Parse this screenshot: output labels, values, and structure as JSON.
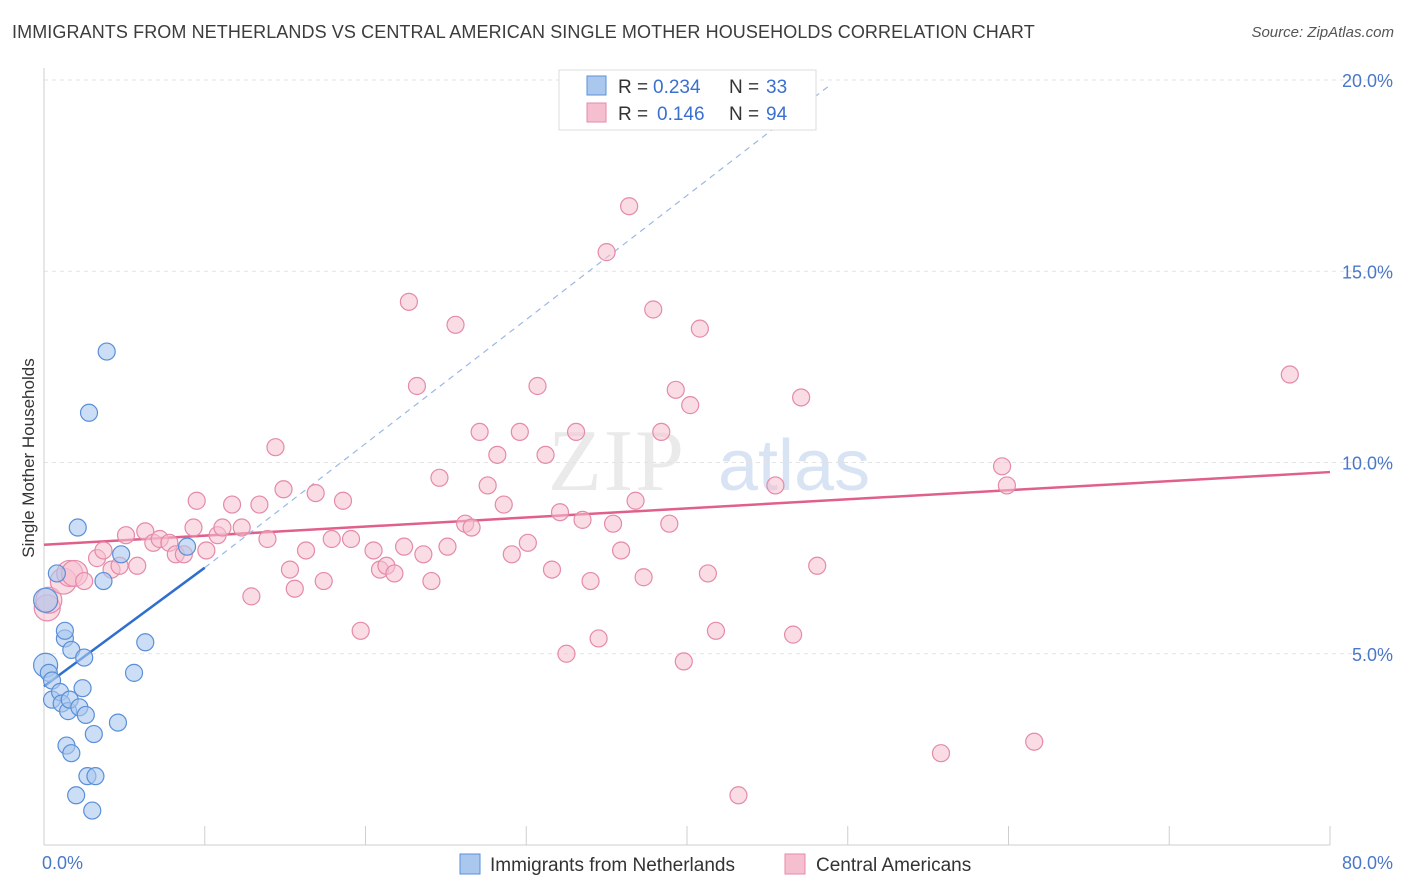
{
  "title": "IMMIGRANTS FROM NETHERLANDS VS CENTRAL AMERICAN SINGLE MOTHER HOUSEHOLDS CORRELATION CHART",
  "source": "Source: ZipAtlas.com",
  "watermark": {
    "zip": "ZIP",
    "atlas": "atlas"
  },
  "colors": {
    "blue_fill": "#aac8ee",
    "blue_stroke": "#5a8fd8",
    "blue_line": "#2f6fd0",
    "pink_fill": "#f6bfd0",
    "pink_stroke": "#e58aa8",
    "pink_line": "#e0608a",
    "axis_text": "#4a78c8",
    "grid": "#e3e3e3"
  },
  "legend": {
    "rows": [
      {
        "r_label": "R =",
        "r_value": "0.234",
        "n_label": "N =",
        "n_value": "33"
      },
      {
        "r_label": "R =",
        "r_value": "0.146",
        "n_label": "N =",
        "n_value": "94"
      }
    ]
  },
  "bottom_legend": [
    "Immigrants from Netherlands",
    "Central Americans"
  ],
  "chart_data": {
    "type": "scatter",
    "title": "IMMIGRANTS FROM NETHERLANDS VS CENTRAL AMERICAN SINGLE MOTHER HOUSEHOLDS CORRELATION CHART",
    "xlabel": "",
    "ylabel": "Single Mother Households",
    "xlim": [
      0,
      80
    ],
    "ylim": [
      0,
      20
    ],
    "x_tick_labels": [
      "0.0%",
      "80.0%"
    ],
    "y_ticks": [
      5,
      10,
      15,
      20
    ],
    "y_tick_labels": [
      "5.0%",
      "10.0%",
      "15.0%",
      "20.0%"
    ],
    "grid": true,
    "legend_position": "top-center",
    "series": [
      {
        "name": "Immigrants from Netherlands",
        "color": "#5a8fd8",
        "points": [
          [
            0.1,
            6.4
          ],
          [
            0.1,
            4.7
          ],
          [
            0.3,
            4.5
          ],
          [
            0.5,
            4.3
          ],
          [
            0.5,
            3.8
          ],
          [
            0.8,
            7.1
          ],
          [
            1.0,
            4.0
          ],
          [
            1.1,
            3.7
          ],
          [
            1.3,
            5.4
          ],
          [
            1.3,
            5.6
          ],
          [
            1.4,
            2.6
          ],
          [
            1.5,
            3.5
          ],
          [
            1.6,
            3.8
          ],
          [
            1.7,
            5.1
          ],
          [
            1.7,
            2.4
          ],
          [
            2.0,
            1.3
          ],
          [
            2.1,
            8.3
          ],
          [
            2.2,
            3.6
          ],
          [
            2.4,
            4.1
          ],
          [
            2.5,
            4.9
          ],
          [
            2.6,
            3.4
          ],
          [
            2.7,
            1.8
          ],
          [
            2.8,
            11.3
          ],
          [
            3.0,
            0.9
          ],
          [
            3.1,
            2.9
          ],
          [
            3.2,
            1.8
          ],
          [
            3.7,
            6.9
          ],
          [
            3.9,
            12.9
          ],
          [
            4.6,
            3.2
          ],
          [
            4.8,
            7.6
          ],
          [
            5.6,
            4.5
          ],
          [
            6.3,
            5.3
          ],
          [
            8.9,
            7.8
          ]
        ],
        "trend": {
          "x": [
            0,
            10
          ],
          "y": [
            4.15,
            7.25
          ],
          "dashed_extension": {
            "x": [
              10,
              49
            ],
            "y": [
              7.25,
              19.9
            ]
          }
        }
      },
      {
        "name": "Central Americans",
        "color": "#e58aa8",
        "points": [
          [
            0.2,
            6.2
          ],
          [
            0.3,
            6.4
          ],
          [
            1.2,
            6.9
          ],
          [
            1.6,
            7.1
          ],
          [
            1.9,
            7.1
          ],
          [
            2.5,
            6.9
          ],
          [
            3.3,
            7.5
          ],
          [
            3.7,
            7.7
          ],
          [
            4.2,
            7.2
          ],
          [
            4.7,
            7.3
          ],
          [
            5.1,
            8.1
          ],
          [
            5.8,
            7.3
          ],
          [
            6.3,
            8.2
          ],
          [
            6.8,
            7.9
          ],
          [
            7.2,
            8.0
          ],
          [
            7.8,
            7.9
          ],
          [
            8.2,
            7.6
          ],
          [
            8.7,
            7.6
          ],
          [
            9.3,
            8.3
          ],
          [
            9.5,
            9.0
          ],
          [
            10.1,
            7.7
          ],
          [
            10.8,
            8.1
          ],
          [
            11.1,
            8.3
          ],
          [
            11.7,
            8.9
          ],
          [
            12.3,
            8.3
          ],
          [
            12.9,
            6.5
          ],
          [
            13.4,
            8.9
          ],
          [
            13.9,
            8.0
          ],
          [
            14.4,
            10.4
          ],
          [
            14.9,
            9.3
          ],
          [
            15.3,
            7.2
          ],
          [
            15.6,
            6.7
          ],
          [
            16.3,
            7.7
          ],
          [
            16.9,
            9.2
          ],
          [
            17.4,
            6.9
          ],
          [
            17.9,
            8.0
          ],
          [
            18.6,
            9.0
          ],
          [
            19.1,
            8.0
          ],
          [
            19.7,
            5.6
          ],
          [
            20.5,
            7.7
          ],
          [
            20.9,
            7.2
          ],
          [
            21.3,
            7.3
          ],
          [
            21.8,
            7.1
          ],
          [
            22.4,
            7.8
          ],
          [
            22.7,
            14.2
          ],
          [
            23.2,
            12.0
          ],
          [
            23.6,
            7.6
          ],
          [
            24.1,
            6.9
          ],
          [
            24.6,
            9.6
          ],
          [
            25.1,
            7.8
          ],
          [
            25.6,
            13.6
          ],
          [
            26.2,
            8.4
          ],
          [
            26.6,
            8.3
          ],
          [
            27.1,
            10.8
          ],
          [
            27.6,
            9.4
          ],
          [
            28.2,
            10.2
          ],
          [
            28.6,
            8.9
          ],
          [
            29.1,
            7.6
          ],
          [
            29.6,
            10.8
          ],
          [
            30.1,
            7.9
          ],
          [
            30.7,
            12.0
          ],
          [
            31.2,
            10.2
          ],
          [
            31.6,
            7.2
          ],
          [
            32.1,
            8.7
          ],
          [
            32.5,
            5.0
          ],
          [
            33.1,
            10.8
          ],
          [
            33.5,
            8.5
          ],
          [
            34.0,
            6.9
          ],
          [
            34.5,
            5.4
          ],
          [
            35.0,
            15.5
          ],
          [
            35.4,
            8.4
          ],
          [
            35.9,
            7.7
          ],
          [
            36.4,
            16.7
          ],
          [
            36.8,
            9.0
          ],
          [
            37.3,
            7.0
          ],
          [
            37.9,
            14.0
          ],
          [
            38.4,
            10.8
          ],
          [
            38.9,
            8.4
          ],
          [
            39.3,
            11.9
          ],
          [
            39.8,
            4.8
          ],
          [
            40.2,
            11.5
          ],
          [
            40.8,
            13.5
          ],
          [
            41.3,
            7.1
          ],
          [
            41.8,
            5.6
          ],
          [
            43.2,
            1.3
          ],
          [
            45.5,
            9.4
          ],
          [
            46.6,
            5.5
          ],
          [
            47.1,
            11.7
          ],
          [
            48.1,
            7.3
          ],
          [
            55.8,
            2.4
          ],
          [
            59.6,
            9.9
          ],
          [
            59.9,
            9.4
          ],
          [
            61.6,
            2.7
          ],
          [
            77.5,
            12.3
          ]
        ],
        "trend": {
          "x": [
            0,
            80
          ],
          "y": [
            7.85,
            9.75
          ]
        }
      }
    ]
  }
}
